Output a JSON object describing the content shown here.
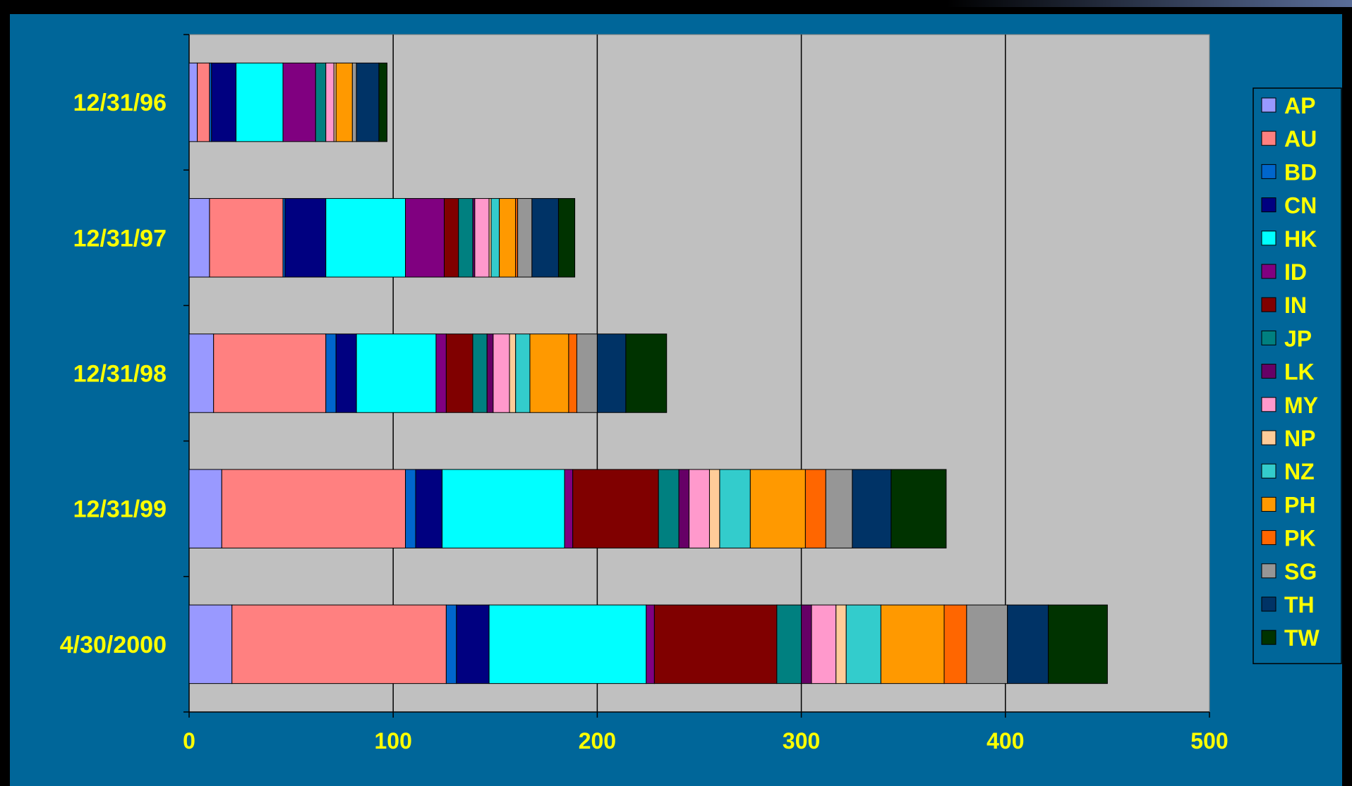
{
  "chart_data": {
    "type": "bar",
    "orientation": "horizontal",
    "stacked": true,
    "title": "",
    "xlabel": "",
    "ylabel": "",
    "xlim": [
      0,
      500
    ],
    "x_ticks": [
      "0",
      "100",
      "200",
      "300",
      "400",
      "500"
    ],
    "grid": true,
    "legend_position": "right",
    "colors": {
      "background": "#006699",
      "plot_area": "#c0c0c0",
      "label_text": "#ffff00",
      "gridline": "#000000"
    },
    "categories": [
      "12/31/96",
      "12/31/97",
      "12/31/98",
      "12/31/99",
      "4/30/2000"
    ],
    "series": [
      {
        "name": "AP",
        "color": "#9999ff",
        "values": [
          4,
          10,
          12,
          16,
          21
        ]
      },
      {
        "name": "AU",
        "color": "#ff8080",
        "values": [
          6,
          36,
          55,
          90,
          105
        ]
      },
      {
        "name": "BD",
        "color": "#0066cc",
        "values": [
          1,
          1,
          5,
          5,
          5
        ]
      },
      {
        "name": "CN",
        "color": "#000080",
        "values": [
          12,
          20,
          10,
          13,
          16
        ]
      },
      {
        "name": "HK",
        "color": "#00ffff",
        "values": [
          23,
          39,
          39,
          60,
          77
        ]
      },
      {
        "name": "ID",
        "color": "#800080",
        "values": [
          16,
          19,
          5,
          4,
          4
        ]
      },
      {
        "name": "IN",
        "color": "#800000",
        "values": [
          0,
          7,
          13,
          42,
          60
        ]
      },
      {
        "name": "JP",
        "color": "#008080",
        "values": [
          5,
          7,
          7,
          10,
          12
        ]
      },
      {
        "name": "LK",
        "color": "#660066",
        "values": [
          0,
          1,
          3,
          5,
          5
        ]
      },
      {
        "name": "MY",
        "color": "#ff99cc",
        "values": [
          4,
          7,
          8,
          10,
          12
        ]
      },
      {
        "name": "NP",
        "color": "#ffcc99",
        "values": [
          1,
          1,
          3,
          5,
          5
        ]
      },
      {
        "name": "NZ",
        "color": "#33cccc",
        "values": [
          0,
          4,
          7,
          15,
          17
        ]
      },
      {
        "name": "PH",
        "color": "#ff9900",
        "values": [
          8,
          8,
          19,
          27,
          31
        ]
      },
      {
        "name": "PK",
        "color": "#ff6600",
        "values": [
          0,
          1,
          4,
          10,
          11
        ]
      },
      {
        "name": "SG",
        "color": "#969696",
        "values": [
          2,
          7,
          10,
          13,
          20
        ]
      },
      {
        "name": "TH",
        "color": "#003366",
        "values": [
          11,
          13,
          14,
          19,
          20
        ]
      },
      {
        "name": "TW",
        "color": "#003300",
        "values": [
          4,
          8,
          20,
          27,
          29
        ]
      }
    ]
  }
}
